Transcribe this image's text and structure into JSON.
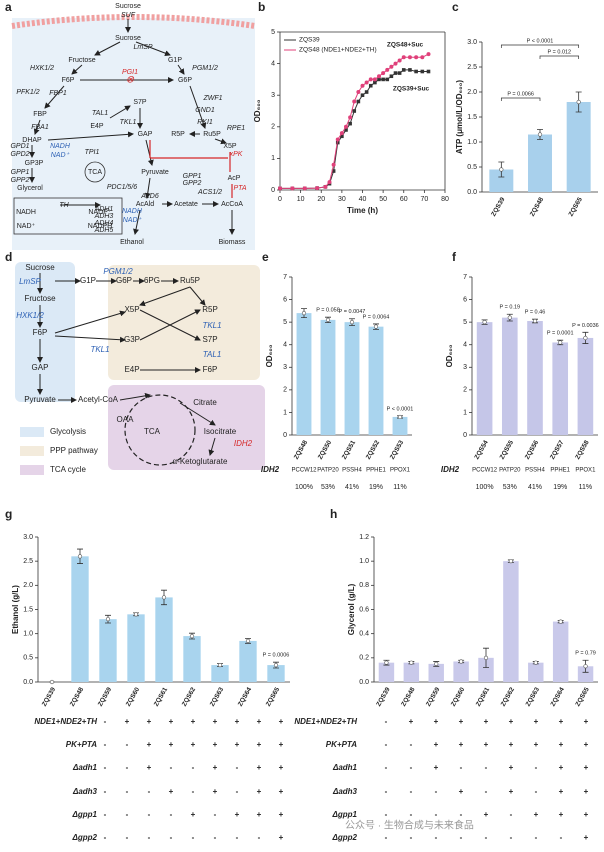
{
  "panel_labels": [
    "a",
    "b",
    "c",
    "d",
    "e",
    "f",
    "g",
    "h"
  ],
  "diagram_a": {
    "labels": [
      "Sucrose",
      "SUF",
      "Sucrose",
      "LmSP",
      "Fructose",
      "G1P",
      "HXK1/2",
      "PGM1/2",
      "F6P",
      "PGI1",
      "G6P",
      "PFK1/2",
      "FBP1",
      "ZWF1",
      "S7P",
      "TAL1",
      "GND1",
      "FBP",
      "E4P",
      "RKI1",
      "R5P",
      "Ru5P",
      "FBA1",
      "TKL1",
      "RPE1",
      "GAP",
      "DHAP",
      "GPD1",
      "NADH",
      "GPD2",
      "NAD⁺",
      "X5P",
      "TPI1",
      "xPK",
      "GP3P",
      "GPP1",
      "GPP2",
      "TCA",
      "Pyruvate",
      "Glycerol",
      "PDC1/5/6",
      "GPP1",
      "GPP2",
      "AcP",
      "PTA",
      "ALD6",
      "ACS1/2",
      "AcAld",
      "Acetate",
      "AcCoA",
      "ADH1",
      "ADH3",
      "ADH4",
      "ADH5",
      "NADH",
      "NAD⁺",
      "Ethanol",
      "Biomass",
      "TH",
      "NADH",
      "NADP⁺",
      "NAD⁺",
      "NADPH"
    ]
  },
  "diagram_d": {
    "labels": [
      "Sucrose",
      "LmSP",
      "G1P",
      "PGM1/2",
      "G6P",
      "6PG",
      "Ru5P",
      "Fructose",
      "HXK1/2",
      "X5P",
      "R5P",
      "F6P",
      "TKL1",
      "G3P",
      "S7P",
      "TKL1",
      "TAL1",
      "E4P",
      "F6P",
      "GAP",
      "Pyruvate",
      "Acetyl-CoA",
      "Citrate",
      "OAA",
      "TCA",
      "Isocitrate",
      "IDH2",
      "α-Ketoglutarate"
    ],
    "legend": [
      "Glycolysis",
      "PPP pathway",
      "TCA cycle"
    ]
  },
  "chart_data": [
    {
      "type": "line",
      "xlabel": "Time (h)",
      "ylabel": "OD₆₀₀",
      "xlim": [
        0,
        80
      ],
      "xticks": [
        0,
        10,
        20,
        30,
        40,
        50,
        60,
        70,
        80
      ],
      "ylim": [
        0,
        5
      ],
      "yticks": [
        0,
        1,
        2,
        3,
        4,
        5
      ],
      "x": [
        0,
        6,
        12,
        18,
        22,
        24,
        26,
        28,
        30,
        32,
        34,
        36,
        38,
        40,
        42,
        44,
        46,
        48,
        50,
        52,
        54,
        56,
        58,
        60,
        63,
        66,
        69,
        72
      ],
      "series": [
        {
          "name": "ZQS39",
          "color": "#333333",
          "marker": "square",
          "values": [
            0.05,
            0.05,
            0.05,
            0.06,
            0.1,
            0.2,
            0.6,
            1.5,
            1.7,
            1.9,
            2.1,
            2.5,
            2.8,
            3.0,
            3.1,
            3.3,
            3.4,
            3.5,
            3.5,
            3.5,
            3.6,
            3.7,
            3.7,
            3.8,
            3.8,
            3.75,
            3.75,
            3.75
          ]
        },
        {
          "name": "ZQS48 (NDE1+NDE2+TH)",
          "color": "#e0407a",
          "marker": "circle",
          "values": [
            0.05,
            0.05,
            0.05,
            0.06,
            0.1,
            0.25,
            0.8,
            1.6,
            1.8,
            2.0,
            2.3,
            2.8,
            3.1,
            3.3,
            3.4,
            3.5,
            3.5,
            3.6,
            3.7,
            3.8,
            3.9,
            4.0,
            4.1,
            4.2,
            4.2,
            4.2,
            4.2,
            4.3
          ]
        }
      ],
      "annotations": [
        "ZQS48+Suc",
        "ZQS39+Suc"
      ]
    },
    {
      "type": "bar",
      "ylabel": "ATP (μmol/L/OD₆₀₀)",
      "categories": [
        "ZQS39",
        "ZQS48",
        "ZQS65"
      ],
      "values": [
        0.45,
        1.15,
        1.8
      ],
      "errors": [
        0.15,
        0.1,
        0.2
      ],
      "color": "#a8d0ec",
      "ylim": [
        0,
        3
      ],
      "yticks": [
        {
          "value": 0,
          "label": "0.0"
        },
        {
          "value": 0.5,
          "label": "0.5"
        },
        {
          "value": 1,
          "label": "1.0"
        },
        {
          "value": 1.5,
          "label": "1.5"
        },
        {
          "value": 2,
          "label": "2.0"
        },
        {
          "value": 2.5,
          "label": "2.5"
        },
        {
          "value": 3,
          "label": "3.0"
        }
      ],
      "annotations": [
        "P = 0.0066",
        "P = 0.012",
        "P < 0.0001"
      ]
    },
    {
      "type": "bar",
      "ylabel": "OD₆₀₀",
      "categories": [
        "ZQS48",
        "ZQS50",
        "ZQS51",
        "ZQS52",
        "ZQS53"
      ],
      "values": [
        5.4,
        5.1,
        5.0,
        4.8,
        0.8
      ],
      "errors": [
        0.2,
        0.12,
        0.15,
        0.12,
        0.05
      ],
      "color": "#a9d4ee",
      "ylim": [
        0,
        7
      ],
      "yticks": [
        0,
        1,
        2,
        3,
        4,
        5,
        6,
        7
      ],
      "annotations": [
        "P = 0.058",
        "P = 0.0047",
        "P = 0.0064",
        "P < 0.0001"
      ],
      "row_label": "IDH2",
      "promoters": [
        "PCCW12",
        "PATP20",
        "PSSH4",
        "PPHE1",
        "PPOX1"
      ],
      "strengths": [
        "100%",
        "53%",
        "41%",
        "19%",
        "11%"
      ]
    },
    {
      "type": "bar",
      "ylabel": "OD₆₀₀",
      "categories": [
        "ZQS54",
        "ZQS55",
        "ZQS56",
        "ZQS57",
        "ZQS58"
      ],
      "values": [
        5.0,
        5.2,
        5.05,
        4.1,
        4.3
      ],
      "errors": [
        0.1,
        0.15,
        0.08,
        0.1,
        0.25
      ],
      "color": "#c5c6e8",
      "ylim": [
        0,
        7
      ],
      "yticks": [
        0,
        1,
        2,
        3,
        4,
        5,
        6,
        7
      ],
      "annotations": [
        "P = 0.19",
        "P = 0.46",
        "P = 0.0001",
        "P = 0.0036"
      ],
      "row_label": "IDH2",
      "promoters": [
        "PCCW12",
        "PATP20",
        "PSSH4",
        "PPHE1",
        "PPOX1"
      ],
      "strengths": [
        "100%",
        "53%",
        "41%",
        "19%",
        "11%"
      ]
    },
    {
      "type": "bar",
      "ylabel": "Ethanol (g/L)",
      "categories": [
        "ZQS39",
        "ZQS48",
        "ZQS59",
        "ZQS60",
        "ZQS61",
        "ZQS62",
        "ZQS63",
        "ZQS64",
        "ZQS65"
      ],
      "values": [
        0.0,
        2.6,
        1.3,
        1.4,
        1.75,
        0.95,
        0.35,
        0.85,
        0.35
      ],
      "errors": [
        0,
        0.15,
        0.08,
        0.03,
        0.15,
        0.06,
        0.03,
        0.05,
        0.06
      ],
      "color": "#a9d4ee",
      "ylim": [
        0,
        3
      ],
      "yticks": [
        {
          "value": 0,
          "label": "0.0"
        },
        {
          "value": 0.5,
          "label": "0.5"
        },
        {
          "value": 1,
          "label": "1.0"
        },
        {
          "value": 1.5,
          "label": "1.5"
        },
        {
          "value": 2,
          "label": "2.0"
        },
        {
          "value": 2.5,
          "label": "2.5"
        },
        {
          "value": 3,
          "label": "3.0"
        }
      ],
      "annotations": [
        "P = 0.0006"
      ]
    },
    {
      "type": "bar",
      "ylabel": "Glycerol (g/L)",
      "categories": [
        "ZQS39",
        "ZQS48",
        "ZQS59",
        "ZQS60",
        "ZQS61",
        "ZQS62",
        "ZQS63",
        "ZQS64",
        "ZQS65"
      ],
      "values": [
        0.16,
        0.16,
        0.15,
        0.17,
        0.2,
        1.0,
        0.16,
        0.5,
        0.13
      ],
      "errors": [
        0.02,
        0.01,
        0.02,
        0.01,
        0.08,
        0.01,
        0.01,
        0.01,
        0.05
      ],
      "color": "#c9c9ea",
      "ylim": [
        0,
        1.2
      ],
      "yticks": [
        {
          "value": 0,
          "label": "0.0"
        },
        {
          "value": 0.2,
          "label": "0.2"
        },
        {
          "value": 0.4,
          "label": "0.4"
        },
        {
          "value": 0.6,
          "label": "0.6"
        },
        {
          "value": 0.8,
          "label": "0.8"
        },
        {
          "value": 1,
          "label": "1.0"
        },
        {
          "value": 1.2,
          "label": "1.2"
        }
      ],
      "annotations": [
        "P = 0.79"
      ]
    }
  ],
  "genotype_table": {
    "rows": [
      {
        "name": "NDE1+NDE2+TH",
        "marks": [
          "-",
          "+",
          "+",
          "+",
          "+",
          "+",
          "+",
          "+",
          "+"
        ]
      },
      {
        "name": "PK+PTA",
        "marks": [
          "-",
          "-",
          "+",
          "+",
          "+",
          "+",
          "+",
          "+",
          "+"
        ]
      },
      {
        "name": "Δadh1",
        "marks": [
          "-",
          "-",
          "+",
          "-",
          "-",
          "+",
          "-",
          "+",
          "+"
        ]
      },
      {
        "name": "Δadh3",
        "marks": [
          "-",
          "-",
          "-",
          "+",
          "-",
          "+",
          "-",
          "+",
          "+"
        ]
      },
      {
        "name": "Δgpp1",
        "marks": [
          "-",
          "-",
          "-",
          "-",
          "+",
          "-",
          "+",
          "+",
          "+"
        ]
      },
      {
        "name": "Δgpp2",
        "marks": [
          "-",
          "-",
          "-",
          "-",
          "-",
          "-",
          "-",
          "-",
          "+"
        ]
      }
    ]
  },
  "watermark": "公众号 · 生物合成与未来食品"
}
